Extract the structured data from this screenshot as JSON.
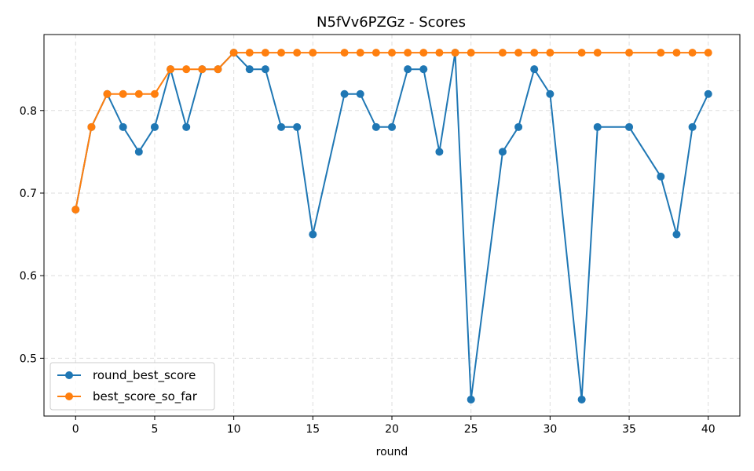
{
  "chart_data": {
    "type": "line",
    "title": "N5fVv6PZGz - Scores",
    "xlabel": "round",
    "ylabel": "",
    "xlim": [
      -2,
      42
    ],
    "ylim": [
      0.43,
      0.892
    ],
    "xticks": [
      0,
      5,
      10,
      15,
      20,
      25,
      30,
      35,
      40
    ],
    "yticks": [
      0.5,
      0.6,
      0.7,
      0.8
    ],
    "ytick_labels": [
      "0.5",
      "0.6",
      "0.7",
      "0.8"
    ],
    "grid": true,
    "legend_position": "lower-left",
    "series": [
      {
        "name": "round_best_score",
        "color": "#1f77b4",
        "x": [
          0,
          1,
          2,
          3,
          4,
          5,
          6,
          7,
          8,
          9,
          10,
          11,
          12,
          13,
          14,
          15,
          17,
          18,
          19,
          20,
          21,
          22,
          23,
          24,
          25,
          27,
          28,
          29,
          30,
          32,
          33,
          35,
          37,
          38,
          39,
          40
        ],
        "y": [
          0.68,
          0.78,
          0.82,
          0.78,
          0.75,
          0.78,
          0.85,
          0.78,
          0.85,
          0.85,
          0.87,
          0.85,
          0.85,
          0.78,
          0.78,
          0.65,
          0.82,
          0.82,
          0.78,
          0.78,
          0.85,
          0.85,
          0.75,
          0.87,
          0.45,
          0.75,
          0.78,
          0.85,
          0.82,
          0.45,
          0.78,
          0.78,
          0.72,
          0.65,
          0.78,
          0.82
        ]
      },
      {
        "name": "best_score_so_far",
        "color": "#ff7f0e",
        "x": [
          0,
          1,
          2,
          3,
          4,
          5,
          6,
          7,
          8,
          9,
          10,
          11,
          12,
          13,
          14,
          15,
          17,
          18,
          19,
          20,
          21,
          22,
          23,
          24,
          25,
          27,
          28,
          29,
          30,
          32,
          33,
          35,
          37,
          38,
          39,
          40
        ],
        "y": [
          0.68,
          0.78,
          0.82,
          0.82,
          0.82,
          0.82,
          0.85,
          0.85,
          0.85,
          0.85,
          0.87,
          0.87,
          0.87,
          0.87,
          0.87,
          0.87,
          0.87,
          0.87,
          0.87,
          0.87,
          0.87,
          0.87,
          0.87,
          0.87,
          0.87,
          0.87,
          0.87,
          0.87,
          0.87,
          0.87,
          0.87,
          0.87,
          0.87,
          0.87,
          0.87,
          0.87
        ]
      }
    ]
  }
}
